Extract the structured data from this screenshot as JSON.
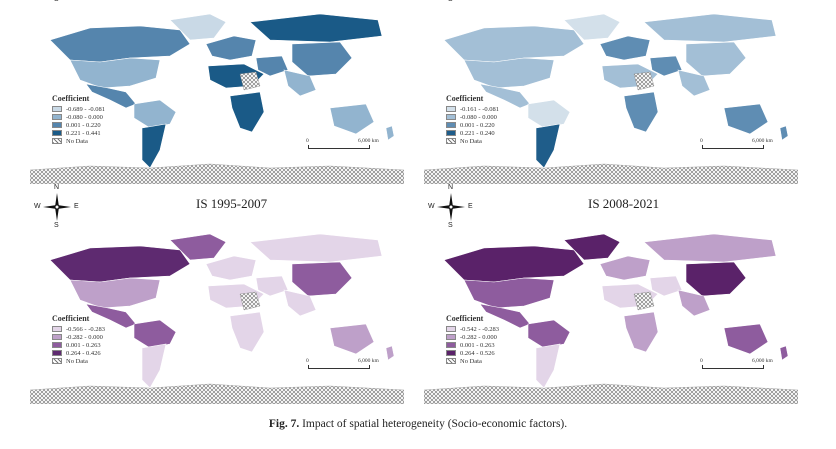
{
  "figure": {
    "caption_label": "Fig. 7.",
    "caption_text": "Impact of spatial heterogeneity (Socio-economic factors)."
  },
  "compass": {
    "n": "N",
    "s": "S",
    "e": "E",
    "w": "W"
  },
  "panels": [
    {
      "title": "",
      "scheme": "blue",
      "legend_title": "Coefficient",
      "legend": [
        "-0.689 - -0.081",
        "-0.080 - 0.000",
        "0.001 - 0.220",
        "0.221 - 0.441"
      ],
      "no_data": "No Data",
      "scale_zero": "0",
      "scale_max": "6,000 km",
      "colors": [
        "#c9d9e6",
        "#92b4cf",
        "#5585ad",
        "#1a5a87"
      ]
    },
    {
      "title": "",
      "scheme": "blue",
      "legend_title": "Coefficient",
      "legend": [
        "-0.161 - -0.081",
        "-0.080 - 0.000",
        "0.001 - 0.220",
        "0.221 - 0.240"
      ],
      "no_data": "No Data",
      "scale_zero": "0",
      "scale_max": "6,000 km",
      "colors": [
        "#d3e0ea",
        "#a3bfd6",
        "#5f8db3",
        "#1f5d8a"
      ]
    },
    {
      "title": "IS 1995-2007",
      "scheme": "purple",
      "legend_title": "Coefficient",
      "legend": [
        "-0.566 - -0.283",
        "-0.282 - 0.000",
        "0.001 - 0.263",
        "0.264 - 0.426"
      ],
      "no_data": "No Data",
      "scale_zero": "0",
      "scale_max": "6,000 km",
      "colors": [
        "#e3d5e8",
        "#bea0c9",
        "#8e5c9e",
        "#5e2a70"
      ]
    },
    {
      "title": "IS 2008-2021",
      "scheme": "purple",
      "legend_title": "Coefficient",
      "legend": [
        "-0.542 - -0.283",
        "-0.282 - 0.000",
        "0.001 - 0.263",
        "0.264 - 0.526"
      ],
      "no_data": "No Data",
      "scale_zero": "0",
      "scale_max": "6,000 km",
      "colors": [
        "#e3d5e8",
        "#bea0c9",
        "#8e5c9e",
        "#5a2269"
      ]
    }
  ],
  "region_classes": [
    [
      2,
      1,
      2,
      0,
      1,
      3,
      2,
      3,
      3,
      2,
      3,
      2,
      1,
      1
    ],
    [
      1,
      1,
      1,
      0,
      0,
      3,
      2,
      1,
      2,
      2,
      1,
      1,
      1,
      2
    ],
    [
      3,
      1,
      2,
      2,
      2,
      0,
      0,
      0,
      0,
      0,
      0,
      2,
      0,
      1
    ],
    [
      3,
      2,
      2,
      3,
      2,
      0,
      1,
      0,
      1,
      0,
      1,
      3,
      1,
      2
    ]
  ]
}
